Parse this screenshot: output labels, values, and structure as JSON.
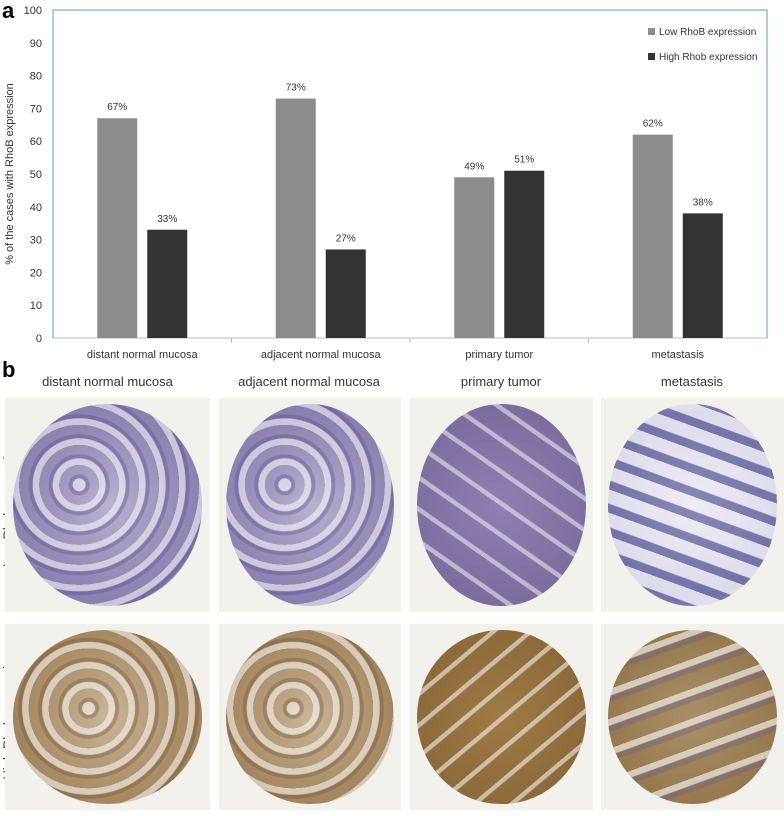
{
  "panel_a_letter": "a",
  "panel_b_letter": "b",
  "chart_data": {
    "type": "bar",
    "categories": [
      "distant normal mucosa",
      "adjacent normal mucosa",
      "primary tumor",
      "metastasis"
    ],
    "series": [
      {
        "name": "Low RhoB expression",
        "values": [
          67,
          73,
          49,
          62
        ],
        "labels": [
          "67%",
          "73%",
          "49%",
          "62%"
        ],
        "color": "#8c8c8c"
      },
      {
        "name": "High Rhob expression",
        "values": [
          33,
          27,
          51,
          38
        ],
        "labels": [
          "33%",
          "27%",
          "51%",
          "38%"
        ],
        "color": "#333333"
      }
    ],
    "title": "",
    "xlabel": "",
    "ylabel": "% of the cases with RhoB expression",
    "ylim": [
      0,
      100
    ],
    "yticks": [
      0,
      10,
      20,
      30,
      40,
      50,
      60,
      70,
      80,
      90,
      100
    ],
    "legend": "top-right",
    "grid": false,
    "frame_color": "#5b9bd5"
  },
  "panel_b": {
    "columns": [
      "distant normal mucosa",
      "adjacent normal mucosa",
      "primary tumor",
      "metastasis"
    ],
    "rows": [
      "Low Rhob expression",
      "High Rhob expression"
    ]
  }
}
